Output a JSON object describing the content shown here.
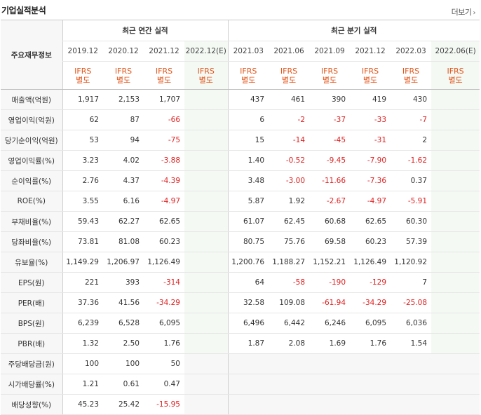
{
  "section": {
    "title": "기업실적분석",
    "more_label": "더보기"
  },
  "table": {
    "label_header": "주요재무정보",
    "annual_group": "최근 연간 실적",
    "quarter_group": "최근 분기 실적",
    "annual_periods": [
      "2019.12",
      "2020.12",
      "2021.12",
      "2022.12(E)"
    ],
    "quarter_periods": [
      "2021.03",
      "2021.06",
      "2021.09",
      "2021.12",
      "2022.03",
      "2022.06(E)"
    ],
    "basis_line1": "IFRS",
    "basis_line2": "별도",
    "rows": [
      {
        "label": "매출액(억원)",
        "values": [
          "1,917",
          "2,153",
          "1,707",
          "",
          "437",
          "461",
          "390",
          "419",
          "430",
          ""
        ]
      },
      {
        "label": "영업이익(억원)",
        "values": [
          "62",
          "87",
          "-66",
          "",
          "6",
          "-2",
          "-37",
          "-33",
          "-7",
          ""
        ]
      },
      {
        "label": "당기순이익(억원)",
        "values": [
          "53",
          "94",
          "-75",
          "",
          "15",
          "-14",
          "-45",
          "-31",
          "2",
          ""
        ]
      },
      {
        "label": "영업이익률(%)",
        "values": [
          "3.23",
          "4.02",
          "-3.88",
          "",
          "1.40",
          "-0.52",
          "-9.45",
          "-7.90",
          "-1.62",
          ""
        ]
      },
      {
        "label": "순이익률(%)",
        "values": [
          "2.76",
          "4.37",
          "-4.39",
          "",
          "3.48",
          "-3.00",
          "-11.66",
          "-7.36",
          "0.37",
          ""
        ]
      },
      {
        "label": "ROE(%)",
        "values": [
          "3.55",
          "6.16",
          "-4.97",
          "",
          "5.87",
          "1.92",
          "-2.67",
          "-4.97",
          "-5.91",
          ""
        ]
      },
      {
        "label": "부채비율(%)",
        "values": [
          "59.43",
          "62.27",
          "62.65",
          "",
          "61.07",
          "62.45",
          "60.68",
          "62.65",
          "60.30",
          ""
        ]
      },
      {
        "label": "당좌비율(%)",
        "values": [
          "73.81",
          "81.08",
          "60.23",
          "",
          "80.75",
          "75.76",
          "69.58",
          "60.23",
          "57.39",
          ""
        ]
      },
      {
        "label": "유보율(%)",
        "values": [
          "1,149.29",
          "1,206.97",
          "1,126.49",
          "",
          "1,200.76",
          "1,188.27",
          "1,152.21",
          "1,126.49",
          "1,120.92",
          ""
        ]
      },
      {
        "label": "EPS(원)",
        "values": [
          "221",
          "393",
          "-314",
          "",
          "64",
          "-58",
          "-190",
          "-129",
          "7",
          ""
        ]
      },
      {
        "label": "PER(배)",
        "values": [
          "37.36",
          "41.56",
          "-34.29",
          "",
          "32.58",
          "109.08",
          "-61.94",
          "-34.29",
          "-25.08",
          ""
        ]
      },
      {
        "label": "BPS(원)",
        "values": [
          "6,239",
          "6,528",
          "6,095",
          "",
          "6,496",
          "6,442",
          "6,246",
          "6,095",
          "6,036",
          ""
        ]
      },
      {
        "label": "PBR(배)",
        "values": [
          "1.32",
          "2.50",
          "1.76",
          "",
          "1.87",
          "2.08",
          "1.69",
          "1.76",
          "1.54",
          ""
        ]
      },
      {
        "label": "주당배당금(원)",
        "values": [
          "100",
          "100",
          "50",
          "",
          "",
          "",
          "",
          "",
          "",
          ""
        ]
      },
      {
        "label": "시가배당률(%)",
        "values": [
          "1.21",
          "0.61",
          "0.47",
          "",
          "",
          "",
          "",
          "",
          "",
          ""
        ]
      },
      {
        "label": "배당성향(%)",
        "values": [
          "45.23",
          "25.42",
          "-15.95",
          "",
          "",
          "",
          "",
          "",
          "",
          ""
        ]
      }
    ]
  }
}
